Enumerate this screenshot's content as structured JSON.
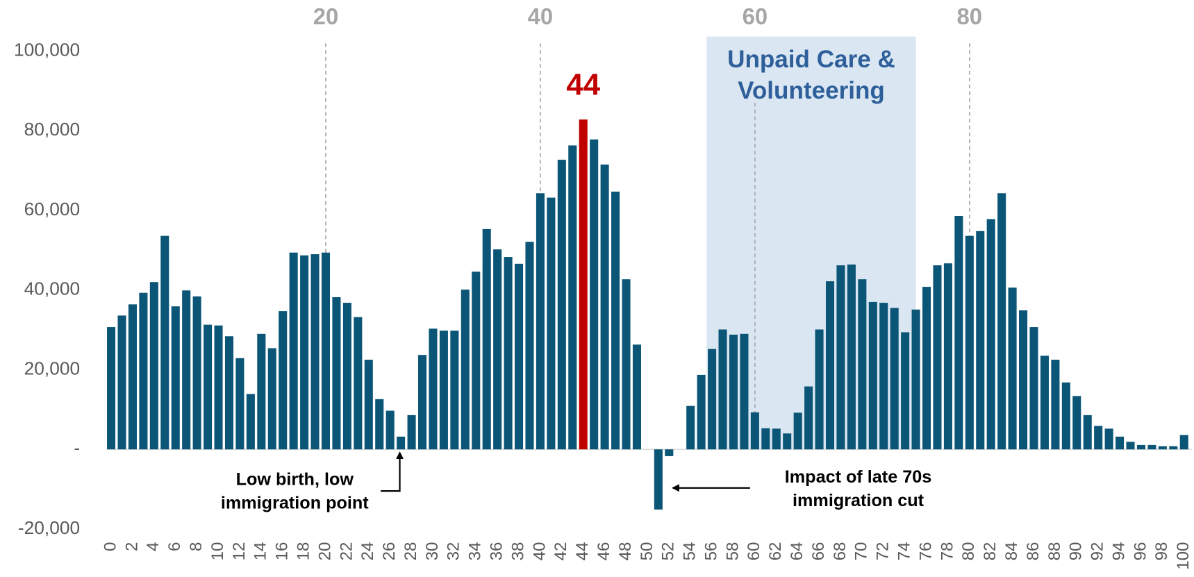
{
  "chart_data": {
    "type": "bar",
    "categories": [
      0,
      null,
      2,
      null,
      4,
      null,
      6,
      null,
      8,
      null,
      10,
      null,
      12,
      null,
      14,
      null,
      16,
      null,
      18,
      null,
      20,
      null,
      22,
      null,
      24,
      null,
      26,
      null,
      28,
      null,
      30,
      null,
      32,
      null,
      34,
      null,
      36,
      null,
      38,
      null,
      40,
      null,
      42,
      null,
      44,
      null,
      46,
      null,
      48,
      null,
      50,
      null,
      52,
      null,
      54,
      null,
      56,
      null,
      58,
      null,
      60,
      null,
      62,
      null,
      64,
      null,
      66,
      null,
      68,
      null,
      70,
      null,
      72,
      null,
      74,
      null,
      76,
      null,
      78,
      null,
      80,
      null,
      82,
      null,
      84,
      null,
      86,
      null,
      88,
      null,
      90,
      null,
      92,
      null,
      94,
      null,
      96,
      null,
      98,
      null,
      100
    ],
    "values": [
      30700,
      33600,
      36400,
      39300,
      42000,
      53600,
      35900,
      39900,
      38400,
      31300,
      31100,
      28400,
      22900,
      13900,
      29000,
      25400,
      34700,
      49400,
      48700,
      49000,
      49400,
      38200,
      36800,
      33200,
      22500,
      12600,
      9700,
      3200,
      8600,
      23700,
      30300,
      29800,
      29800,
      40100,
      44600,
      55300,
      50200,
      48300,
      46600,
      52100,
      64300,
      63200,
      72700,
      76300,
      82800,
      77800,
      71500,
      64700,
      42700,
      26300,
      0,
      -15100,
      -1700,
      0,
      10900,
      18700,
      25200,
      30100,
      28800,
      29000,
      9300,
      5300,
      5200,
      4000,
      9200,
      15800,
      30100,
      42200,
      46200,
      46400,
      42700,
      37000,
      36800,
      35500,
      29400,
      35100,
      40800,
      46200,
      46700,
      58600,
      53600,
      54800,
      57800,
      64300,
      40600,
      34900,
      30700,
      23500,
      22500,
      16800,
      13400,
      8600,
      5900,
      5200,
      3200,
      1900,
      1100,
      1100,
      800,
      800,
      3600
    ],
    "color": "#0b5677",
    "highlight_index": 44,
    "highlight_color": "#c00000",
    "ylim": [
      -20000,
      100000
    ],
    "yticks": [
      {
        "value": -20000,
        "label": "-20,000"
      },
      {
        "value": 0,
        "label": "-"
      },
      {
        "value": 20000,
        "label": "20,000"
      },
      {
        "value": 40000,
        "label": "40,000"
      },
      {
        "value": 60000,
        "label": "60,000"
      },
      {
        "value": 80000,
        "label": "80,000"
      },
      {
        "value": 100000,
        "label": "100,000"
      }
    ],
    "top_ticks": [
      20,
      40,
      60,
      80
    ],
    "band": {
      "from": 55.5,
      "to": 75,
      "color": "#dae7f3",
      "text": [
        "Unpaid Care &",
        "Volunteering"
      ]
    },
    "annotations": [
      {
        "text": [
          "Low birth, low",
          "immigration point"
        ]
      },
      {
        "text": [
          "Impact of late 70s",
          "immigration cut"
        ]
      }
    ]
  }
}
